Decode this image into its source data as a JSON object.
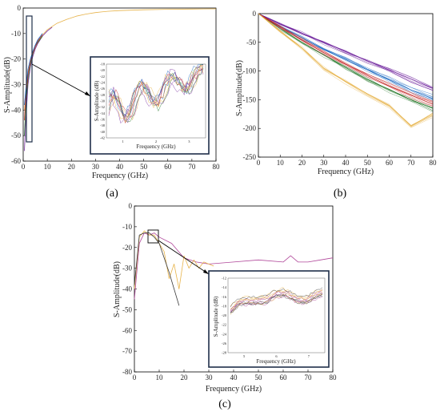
{
  "figure": {
    "panels": [
      {
        "id": "a",
        "label": "(a)",
        "xlabel": "Frequency (GHz)",
        "ylabel": "S-Amplitude(dB)",
        "inset": {
          "xlabel": "Frequency (GHz)",
          "ylabel": "S-Amplitude (dB)"
        }
      },
      {
        "id": "b",
        "label": "(b)",
        "xlabel": "Frequency (GHz)",
        "ylabel": "S-Amplitude(dB)"
      },
      {
        "id": "c",
        "label": "(c)",
        "xlabel": "Frequency (GHz)",
        "ylabel": "S-Amplitude(dB)",
        "inset": {
          "xlabel": "Frequency (GHz)",
          "ylabel": "S-Amplitude (dB)"
        }
      }
    ]
  },
  "chart_data": [
    {
      "type": "line",
      "panel": "(a)",
      "xlabel": "Frequency (GHz)",
      "ylabel": "S-Amplitude(dB)",
      "xlim": [
        0,
        80
      ],
      "ylim": [
        -60,
        0
      ],
      "xticks": [
        0,
        10,
        20,
        30,
        40,
        50,
        60,
        70,
        80
      ],
      "yticks": [
        -60,
        -50,
        -40,
        -30,
        -20,
        -10,
        0
      ],
      "grid": false,
      "description_series": "many overlapping S-parameter curves",
      "series": [
        {
          "color": "#e7b34a",
          "x": [
            0.5,
            2,
            4,
            6,
            8,
            10,
            14,
            18,
            22,
            26,
            30,
            35,
            40,
            50,
            60,
            70,
            80
          ],
          "values": [
            -40,
            -25,
            -18,
            -13.5,
            -10.5,
            -8.5,
            -6,
            -4.5,
            -3.2,
            -2.4,
            -1.8,
            -1.3,
            -1,
            -0.7,
            -0.5,
            -0.4,
            -0.3
          ]
        },
        {
          "color": "#7a2fa0",
          "x": [
            0.5,
            1,
            2,
            3,
            4,
            5,
            6,
            8,
            10,
            12
          ],
          "values": [
            -56,
            -45,
            -30,
            -23,
            -19,
            -16,
            -14,
            -11,
            -9,
            -7.5
          ]
        },
        {
          "color": "#2e7d32",
          "x": [
            0.5,
            1,
            2,
            3,
            4,
            5,
            6,
            8
          ],
          "values": [
            -50,
            -40,
            -28,
            -22,
            -18,
            -15,
            -13.5,
            -11
          ]
        },
        {
          "color": "#c62828",
          "x": [
            0.5,
            1,
            2,
            3,
            4,
            5,
            6,
            8
          ],
          "values": [
            -44,
            -36,
            -26,
            -21,
            -17.5,
            -15,
            -13,
            -10.5
          ]
        },
        {
          "color": "#1565c0",
          "x": [
            0.5,
            1,
            2,
            3,
            4,
            5,
            6,
            8
          ],
          "values": [
            -38,
            -33,
            -24,
            -20,
            -17,
            -14.5,
            -12.5,
            -10
          ]
        }
      ],
      "inset": {
        "xlabel": "Frequency (GHz)",
        "ylabel": "S-Amplitude (dB)",
        "yticks": [
          -18,
          -20,
          -22,
          -24,
          -26,
          -28,
          -30,
          -32,
          -34,
          -36,
          -38,
          -40,
          -42
        ],
        "xticks": [
          1,
          2,
          3
        ]
      }
    },
    {
      "type": "line",
      "panel": "(b)",
      "xlabel": "Frequency (GHz)",
      "ylabel": "S-Amplitude(dB)",
      "xlim": [
        0,
        80
      ],
      "ylim": [
        -250,
        0
      ],
      "xticks": [
        0,
        10,
        20,
        30,
        40,
        50,
        60,
        70,
        80
      ],
      "yticks": [
        -250,
        -200,
        -150,
        -100,
        -50,
        0
      ],
      "grid": false,
      "series": [
        {
          "color": "#6a1b9a",
          "x": [
            0,
            10,
            20,
            30,
            40,
            50,
            60,
            70,
            80
          ],
          "values": [
            0,
            -18,
            -34,
            -50,
            -66,
            -82,
            -98,
            -114,
            -130
          ]
        },
        {
          "color": "#1565c0",
          "x": [
            0,
            10,
            20,
            30,
            40,
            50,
            60,
            70,
            80
          ],
          "values": [
            0,
            -22,
            -42,
            -62,
            -80,
            -98,
            -115,
            -133,
            -148
          ]
        },
        {
          "color": "#2e7d32",
          "x": [
            0,
            10,
            20,
            30,
            40,
            50,
            60,
            70,
            80
          ],
          "values": [
            0,
            -26,
            -50,
            -72,
            -94,
            -115,
            -132,
            -150,
            -165
          ]
        },
        {
          "color": "#c62828",
          "x": [
            0,
            10,
            20,
            30,
            40,
            50,
            60,
            70,
            80
          ],
          "values": [
            0,
            -24,
            -46,
            -68,
            -88,
            -108,
            -126,
            -142,
            -158
          ]
        },
        {
          "color": "#e7b34a",
          "x": [
            0,
            10,
            20,
            30,
            40,
            50,
            60,
            70,
            80
          ],
          "values": [
            0,
            -30,
            -60,
            -95,
            -118,
            -140,
            -160,
            -195,
            -175
          ]
        }
      ]
    },
    {
      "type": "line",
      "panel": "(c)",
      "xlabel": "Frequency (GHz)",
      "ylabel": "S-Amplitude(dB)",
      "xlim": [
        0,
        80
      ],
      "ylim": [
        -80,
        0
      ],
      "xticks": [
        0,
        10,
        20,
        30,
        40,
        50,
        60,
        70,
        80
      ],
      "yticks": [
        -80,
        -70,
        -60,
        -50,
        -40,
        -30,
        -20,
        -10,
        0
      ],
      "grid": false,
      "series": [
        {
          "color": "#b0479a",
          "x": [
            0,
            2,
            4,
            6,
            8,
            10,
            15,
            20,
            25,
            30,
            40,
            50,
            60,
            63,
            66,
            70,
            75,
            80
          ],
          "values": [
            -45,
            -18,
            -13,
            -14,
            -13,
            -15,
            -18,
            -25,
            -27,
            -28,
            -27,
            -26,
            -27,
            -24,
            -27,
            -27,
            -26,
            -25
          ]
        },
        {
          "color": "#e7b34a",
          "x": [
            0,
            2,
            4,
            6,
            8,
            10,
            12,
            14,
            16,
            18,
            20,
            22,
            24,
            26,
            28,
            30,
            32
          ],
          "values": [
            -40,
            -15,
            -12,
            -14,
            -14,
            -18,
            -22,
            -35,
            -28,
            -40,
            -24,
            -30,
            -26,
            -30,
            -27,
            -28,
            -29
          ]
        },
        {
          "color": "#3a3a3a",
          "x": [
            0,
            2,
            4,
            6,
            8,
            10,
            12,
            14,
            16,
            18
          ],
          "values": [
            -38,
            -14,
            -13,
            -13,
            -15,
            -18,
            -25,
            -32,
            -40,
            -48
          ]
        }
      ],
      "inset": {
        "xlabel": "Frequency (GHz)",
        "ylabel": "S-Amplitude (dB)",
        "yticks": [
          -12,
          -14,
          -16,
          -18,
          -20,
          -22,
          -24,
          -26,
          -28
        ],
        "xticks": [
          5,
          6,
          7
        ]
      }
    }
  ]
}
